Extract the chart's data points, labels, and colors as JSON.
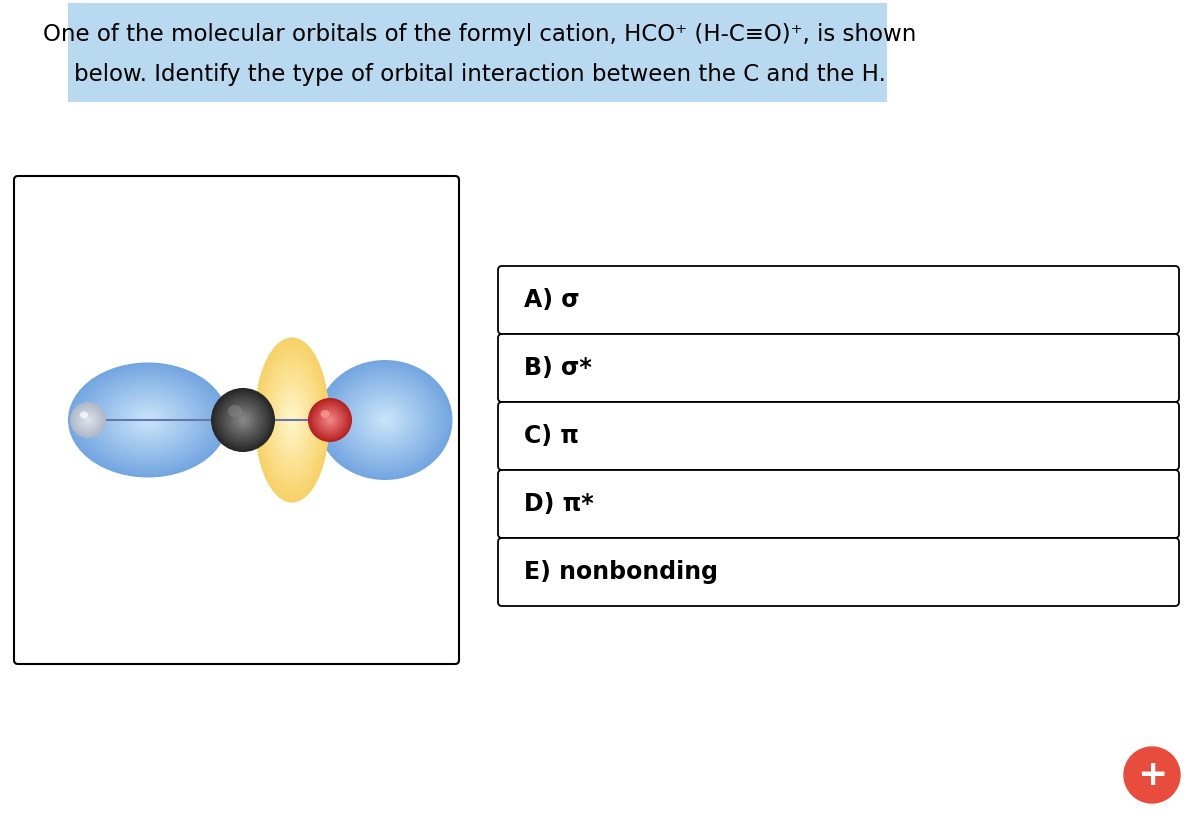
{
  "title_line1": "One of the molecular orbitals of the formyl cation, HCO⁺ (H-C≡O)⁺, is shown",
  "title_line2": "below. Identify the type of orbital interaction between the C and the H.",
  "title_bg_color": "#b8d9f0",
  "title_fontsize": 16.5,
  "choices": [
    "A) σ",
    "B) σ*",
    "C) π",
    "D) π*",
    "E) nonbonding"
  ],
  "choice_fontsize": 17,
  "background_color": "#ffffff",
  "plus_button_color": "#e74c3c",
  "fig_width": 12.0,
  "fig_height": 8.15
}
